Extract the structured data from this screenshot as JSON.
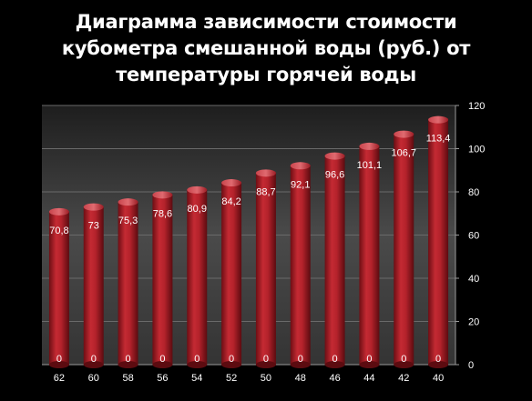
{
  "chart_data": {
    "type": "bar",
    "title_lines": [
      "Диаграмма зависимости  стоимости",
      "кубометра смешанной воды (руб.) от",
      "температуры горячей воды"
    ],
    "categories": [
      "62",
      "60",
      "58",
      "56",
      "54",
      "52",
      "50",
      "48",
      "46",
      "44",
      "42",
      "40"
    ],
    "series": [
      {
        "values": [
          70.8,
          73,
          75.3,
          78.6,
          80.9,
          84.2,
          88.7,
          92.1,
          96.6,
          101.1,
          106.7,
          113.4
        ],
        "data_labels": [
          "70,8",
          "73",
          "75,3",
          "78,6",
          "80,9",
          "84,2",
          "88,7",
          "92,1",
          "96,6",
          "101,1",
          "106,7",
          "113,4"
        ],
        "base_labels": [
          "0",
          "0",
          "0",
          "0",
          "0",
          "0",
          "0",
          "0",
          "0",
          "0",
          "0",
          "0"
        ]
      }
    ],
    "ylim": [
      0,
      120
    ],
    "yticks": [
      "0",
      "20",
      "40",
      "60",
      "80",
      "100",
      "120"
    ],
    "y_axis_position": "right",
    "grid": true,
    "bar_color": "#b8232b",
    "plot_background": "#3a3a3a",
    "page_background": "#000000"
  }
}
